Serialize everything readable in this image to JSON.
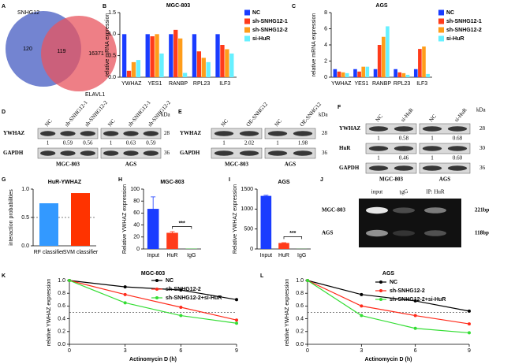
{
  "venn": {
    "label": "A",
    "sets": [
      {
        "name": "SNHG12",
        "color": "#5b6ec9"
      },
      {
        "name": "ELAVL1",
        "color": "#e8545e"
      }
    ],
    "counts": [
      120,
      119,
      16371
    ]
  },
  "blots": [
    {
      "label": "D",
      "unit": "kDa",
      "groups": [
        {
          "name": "MGC-803",
          "lanes": [
            "NC",
            "sh-SNHG12-1",
            "sh-SNHG12-2"
          ]
        },
        {
          "name": "AGS",
          "lanes": [
            "NC",
            "sh-SNHG12-1",
            "sh-SNHG12-2"
          ]
        }
      ],
      "rows": [
        {
          "protein": "YWHAZ",
          "kda": "28",
          "ratios": [
            [
              "1",
              "0.59",
              "0.56"
            ],
            [
              "1",
              "0.63",
              "0.59"
            ]
          ]
        },
        {
          "protein": "GAPDH",
          "kda": "36"
        }
      ]
    },
    {
      "label": "E",
      "unit": "kDa",
      "groups": [
        {
          "name": "MGC-803",
          "lanes": [
            "NC",
            "OE-SNHG12"
          ]
        },
        {
          "name": "AGS",
          "lanes": [
            "NC",
            "OE-SNHG12"
          ]
        }
      ],
      "rows": [
        {
          "protein": "YWHAZ",
          "kda": "28",
          "ratios": [
            [
              "1",
              "2.02"
            ],
            [
              "1",
              "1.98"
            ]
          ]
        },
        {
          "protein": "GAPDH",
          "kda": "36"
        }
      ]
    },
    {
      "label": "F",
      "unit": "kDa",
      "groups": [
        {
          "name": "MGC-803",
          "lanes": [
            "NC",
            "si-HuR"
          ]
        },
        {
          "name": "AGS",
          "lanes": [
            "NC",
            "si-HuR"
          ]
        }
      ],
      "rows": [
        {
          "protein": "YWHAZ",
          "kda": "28",
          "ratios": [
            [
              "1",
              "0.58"
            ],
            [
              "1",
              "0.68"
            ]
          ]
        },
        {
          "protein": "HuR",
          "kda": "30",
          "ratios": [
            [
              "1",
              "0.46"
            ],
            [
              "1",
              "0.60"
            ]
          ]
        },
        {
          "protein": "GAPDH",
          "kda": "36"
        }
      ]
    }
  ],
  "gel": {
    "label": "J",
    "lanes": [
      "input",
      "IgG",
      "IP: HuR"
    ],
    "samples": [
      {
        "name": "MGC-803",
        "size": "221bp"
      },
      {
        "name": "AGS",
        "size": "118bp"
      }
    ]
  },
  "chart_data": [
    {
      "type": "bar",
      "label": "B",
      "title": "MGC-803",
      "ylabel": "relative mRNA expression",
      "categories": [
        "YWHAZ",
        "YES1",
        "RANBP",
        "RPL23",
        "ILF3"
      ],
      "series": [
        {
          "name": "NC",
          "color": "#1a3cff",
          "values": [
            1,
            1,
            1,
            1,
            1
          ]
        },
        {
          "name": "sh-SNHG12-1",
          "color": "#ff3b1a",
          "values": [
            0.15,
            0.95,
            1.1,
            0.6,
            0.75
          ]
        },
        {
          "name": "sh-SNHG12-2",
          "color": "#ff9d1a",
          "values": [
            0.35,
            1.0,
            0.9,
            0.45,
            0.65
          ]
        },
        {
          "name": "si-HuR",
          "color": "#66f0ff",
          "values": [
            0.4,
            0.55,
            0.1,
            0.35,
            0.55
          ]
        }
      ],
      "ylim": [
        0,
        1.5
      ],
      "yticks": [
        {
          "value": 0,
          "label": "0.0"
        },
        {
          "value": 0.5,
          "label": "0.5"
        },
        {
          "value": 1,
          "label": "1.0"
        },
        {
          "value": 1.5,
          "label": "1.5"
        }
      ]
    },
    {
      "type": "bar",
      "label": "C",
      "title": "AGS",
      "ylabel": "relative mRNA expression",
      "categories": [
        "YWHAZ",
        "YES1",
        "RANBP",
        "RPL23",
        "ILF3"
      ],
      "series": [
        {
          "name": "NC",
          "color": "#1a3cff",
          "values": [
            1,
            1,
            1,
            1,
            1
          ]
        },
        {
          "name": "sh-SNHG12-1",
          "color": "#ff3b1a",
          "values": [
            0.7,
            0.7,
            4.0,
            0.6,
            3.5
          ]
        },
        {
          "name": "sh-SNHG12-2",
          "color": "#ff9d1a",
          "values": [
            0.6,
            1.3,
            5.0,
            0.5,
            3.8
          ]
        },
        {
          "name": "si-HuR",
          "color": "#66f0ff",
          "values": [
            0.5,
            1.3,
            6.3,
            0.3,
            0.4
          ]
        }
      ],
      "ylim": [
        0,
        8
      ],
      "yticks": [
        0,
        2,
        4,
        6,
        8
      ]
    },
    {
      "type": "bar",
      "label": "G",
      "title": "HuR-YWHAZ",
      "ylabel": "interaction probabilities",
      "categories": [
        "RF classifier",
        "SVM classifier"
      ],
      "values": [
        0.75,
        0.93
      ],
      "colors": [
        "#3399ff",
        "#ff3300"
      ],
      "ylim": [
        0,
        1
      ],
      "yticks": [
        {
          "value": 0,
          "label": "0.0"
        },
        {
          "value": 0.5,
          "label": "0.5"
        },
        {
          "value": 1,
          "label": "1.0"
        }
      ],
      "threshold": 0.5
    },
    {
      "type": "bar",
      "label": "H",
      "title": "MGC-803",
      "ylabel": "Relative YWHAZ expression",
      "categories": [
        "Input",
        "HuR",
        "IgG"
      ],
      "values": [
        67,
        27,
        0.5
      ],
      "errors": [
        20,
        2,
        0
      ],
      "colors": [
        "#1a3cff",
        "#ff3b1a",
        "#33cc33"
      ],
      "ylim": [
        0,
        100
      ],
      "yticks": [
        0,
        20,
        40,
        60,
        80,
        100
      ],
      "significance": "***"
    },
    {
      "type": "bar",
      "label": "I",
      "title": "AGS",
      "ylabel": "Relative YWHAZ expression",
      "categories": [
        "Input",
        "HuR",
        "IgG"
      ],
      "values": [
        1330,
        150,
        3
      ],
      "errors": [
        15,
        8,
        0
      ],
      "colors": [
        "#1a3cff",
        "#ff3b1a",
        "#33cc33"
      ],
      "ylim": [
        0,
        1500
      ],
      "yticks": [
        0,
        500,
        1000,
        1500
      ],
      "significance": "***"
    },
    {
      "type": "line",
      "label": "K",
      "title": "MGC-803",
      "xlabel": "Actinomycin D (h)",
      "ylabel": "relative YWHAZ expression",
      "x": [
        0,
        3,
        6,
        9
      ],
      "xlim": [
        0,
        9
      ],
      "xticks": [
        0,
        3,
        6,
        9
      ],
      "series": [
        {
          "name": "NC",
          "color": "#000000",
          "values": [
            1,
            0.9,
            0.85,
            0.7
          ]
        },
        {
          "name": "sh-SNHG12-2",
          "color": "#ff2a1a",
          "values": [
            1,
            0.78,
            0.58,
            0.38
          ]
        },
        {
          "name": "sh-SNHG12-2+si-HuR",
          "color": "#33dd33",
          "values": [
            1,
            0.65,
            0.45,
            0.33
          ]
        }
      ],
      "ylim": [
        0,
        1
      ],
      "yticks": [
        {
          "value": 0,
          "label": "0.0"
        },
        {
          "value": 0.2,
          "label": "0.2"
        },
        {
          "value": 0.4,
          "label": "0.4"
        },
        {
          "value": 0.6,
          "label": "0.6"
        },
        {
          "value": 0.8,
          "label": "0.8"
        },
        {
          "value": 1,
          "label": "1.0"
        }
      ],
      "threshold": 0.5
    },
    {
      "type": "line",
      "label": "L",
      "title": "AGS",
      "xlabel": "Actinomycin D (h)",
      "ylabel": "relative YWHAZ expression",
      "x": [
        0,
        3,
        6,
        9
      ],
      "xlim": [
        0,
        9
      ],
      "xticks": [
        0,
        3,
        6,
        9
      ],
      "series": [
        {
          "name": "NC",
          "color": "#000000",
          "values": [
            1,
            0.78,
            0.68,
            0.52
          ]
        },
        {
          "name": "sh-SNHG12-2",
          "color": "#ff2a1a",
          "values": [
            1,
            0.6,
            0.45,
            0.32
          ]
        },
        {
          "name": "sh-SNHG12-2+si-HuR",
          "color": "#33dd33",
          "values": [
            1,
            0.45,
            0.25,
            0.18
          ]
        }
      ],
      "ylim": [
        0,
        1
      ],
      "yticks": [
        {
          "value": 0,
          "label": "0.0"
        },
        {
          "value": 0.2,
          "label": "0.2"
        },
        {
          "value": 0.4,
          "label": "0.4"
        },
        {
          "value": 0.6,
          "label": "0.6"
        },
        {
          "value": 0.8,
          "label": "0.8"
        },
        {
          "value": 1,
          "label": "1.0"
        }
      ],
      "threshold": 0.5
    }
  ]
}
